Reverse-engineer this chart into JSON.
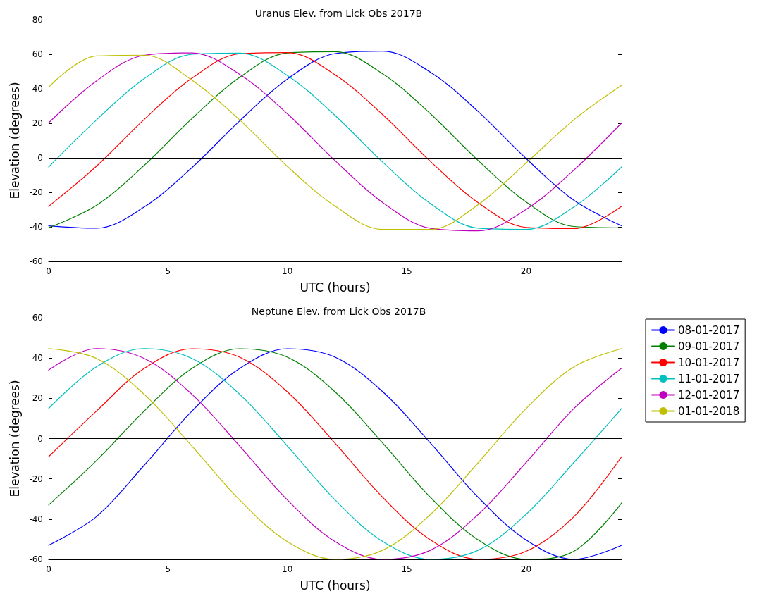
{
  "chart_data": [
    {
      "type": "line",
      "title": "Uranus Elev. from Lick Obs 2017B",
      "xlabel": "UTC (hours)",
      "ylabel": "Elevation (degrees)",
      "x": [
        0,
        2,
        4,
        6,
        8,
        10,
        12,
        14,
        16,
        18,
        20,
        22,
        24
      ],
      "xlim": [
        0,
        24
      ],
      "xticks": [
        0,
        5,
        10,
        15,
        20
      ],
      "ylim": [
        -60,
        80
      ],
      "yticks": [
        -60,
        -40,
        -20,
        0,
        20,
        40,
        60,
        80
      ],
      "grid": false,
      "legend": false,
      "marker": "none",
      "line_style": "solid",
      "ref_lines": [
        {
          "axis": "y",
          "value": 0,
          "color": "#000000"
        }
      ],
      "series": [
        {
          "color": "#0000ff",
          "values": [
            -39.4,
            -40.8,
            -28.5,
            -5.7,
            21.4,
            45.6,
            60.4,
            61.8,
            49.5,
            26.7,
            -0.4,
            -24.6,
            -39.4
          ]
        },
        {
          "color": "#008000",
          "values": [
            -40.5,
            -27.6,
            -4.4,
            22.7,
            46.6,
            60.8,
            61.5,
            48.6,
            25.4,
            -1.7,
            -25.6,
            -39.8,
            -40.5
          ]
        },
        {
          "color": "#ff0000",
          "values": [
            -28.1,
            -4.9,
            22.2,
            46.1,
            60.3,
            61.0,
            48.1,
            24.9,
            -2.2,
            -26.1,
            -40.3,
            -41.0,
            -28.1
          ]
        },
        {
          "color": "#00bfbf",
          "values": [
            -5.3,
            21.9,
            45.8,
            60.0,
            60.7,
            47.7,
            24.5,
            -2.6,
            -26.6,
            -40.8,
            -41.5,
            -28.5,
            -5.3
          ]
        },
        {
          "color": "#bf00bf",
          "values": [
            20.2,
            44.5,
            59.4,
            60.8,
            48.4,
            25.5,
            -1.7,
            -26.0,
            -40.9,
            -42.3,
            -29.9,
            -7.1,
            20.2
          ]
        },
        {
          "color": "#bfbf00",
          "values": [
            41,
            59,
            59.5,
            45,
            22,
            -5,
            -28,
            -41.5,
            -41.5,
            -27,
            -3,
            22,
            42
          ]
        }
      ]
    },
    {
      "type": "line",
      "title": "Neptune Elev. from Lick Obs 2017B",
      "xlabel": "UTC (hours)",
      "ylabel": "Elevation (degrees)",
      "x": [
        0,
        2,
        4,
        6,
        8,
        10,
        12,
        14,
        16,
        18,
        20,
        22,
        24
      ],
      "xlim": [
        0,
        24
      ],
      "xticks": [
        0,
        5,
        10,
        15,
        20
      ],
      "ylim": [
        -60,
        60
      ],
      "yticks": [
        -60,
        -40,
        -20,
        0,
        20,
        40,
        60
      ],
      "grid": false,
      "legend": "right",
      "marker": "none",
      "line_style": "solid",
      "ref_lines": [
        {
          "axis": "y",
          "value": 0,
          "color": "#000000"
        }
      ],
      "series": [
        {
          "name": "08-01-2017",
          "color": "#0000ff",
          "values": [
            -53,
            -38.8,
            -13.3,
            13.6,
            34.8,
            44.6,
            40.4,
            23.2,
            -2.3,
            -29.3,
            -50.4,
            -60,
            -53
          ]
        },
        {
          "name": "09-01-2017",
          "color": "#008000",
          "values": [
            -33,
            -11,
            13.6,
            34.8,
            44.6,
            40.4,
            23.2,
            -2.3,
            -29.3,
            -50.4,
            -60,
            -56.0,
            -32
          ]
        },
        {
          "name": "10-01-2017",
          "color": "#ff0000",
          "values": [
            -9,
            13.6,
            34.8,
            44.6,
            40.4,
            23.2,
            -2.3,
            -29.3,
            -50.4,
            -60,
            -56.0,
            -38.8,
            -9
          ]
        },
        {
          "name": "11-01-2017",
          "color": "#00bfbf",
          "values": [
            14.9,
            35.6,
            44.7,
            39.8,
            22.0,
            -3.7,
            -30.5,
            -51.2,
            -60,
            -55.4,
            -37.6,
            -11.9,
            14.9
          ]
        },
        {
          "name": "12-01-2017",
          "color": "#bf00bf",
          "values": [
            34,
            44.7,
            39.8,
            22.0,
            -3.7,
            -30.5,
            -51.2,
            -60,
            -55.4,
            -37.6,
            -11.9,
            14.9,
            35
          ]
        },
        {
          "name": "01-01-2018",
          "color": "#bfbf00",
          "values": [
            44.7,
            39.8,
            22.0,
            -3.7,
            -30.5,
            -51.2,
            -60,
            -55.4,
            -37.6,
            -11.9,
            14.9,
            35.6,
            44.7
          ]
        }
      ]
    }
  ]
}
